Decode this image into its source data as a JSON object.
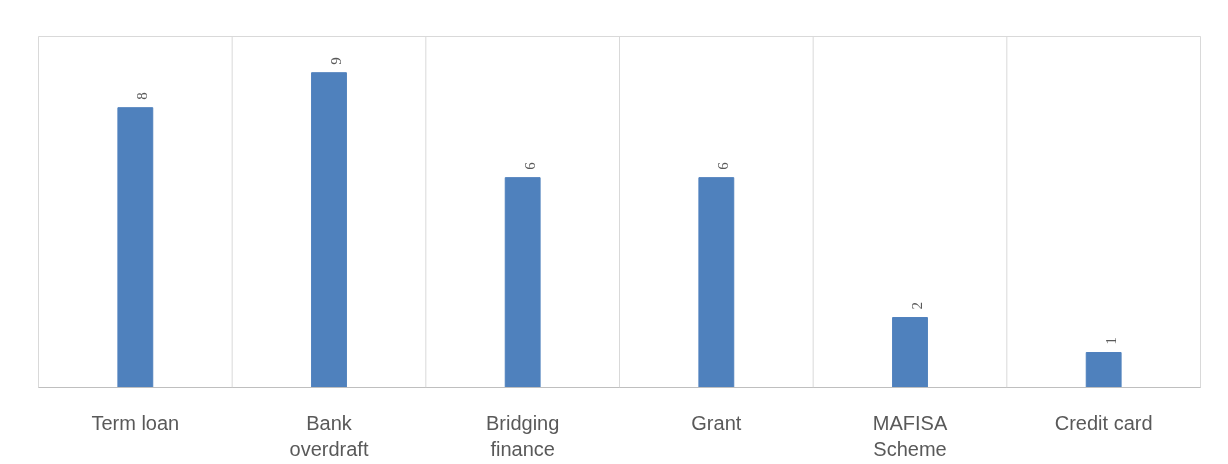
{
  "chart_data": {
    "type": "bar",
    "categories": [
      "Term loan",
      "Bank overdraft",
      "Bridging finance",
      "Grant",
      "MAFISA Scheme",
      "Credit card"
    ],
    "values": [
      8,
      9,
      6,
      6,
      2,
      1
    ],
    "color": "#4f81bd",
    "data_labels": true,
    "grid": "x"
  }
}
